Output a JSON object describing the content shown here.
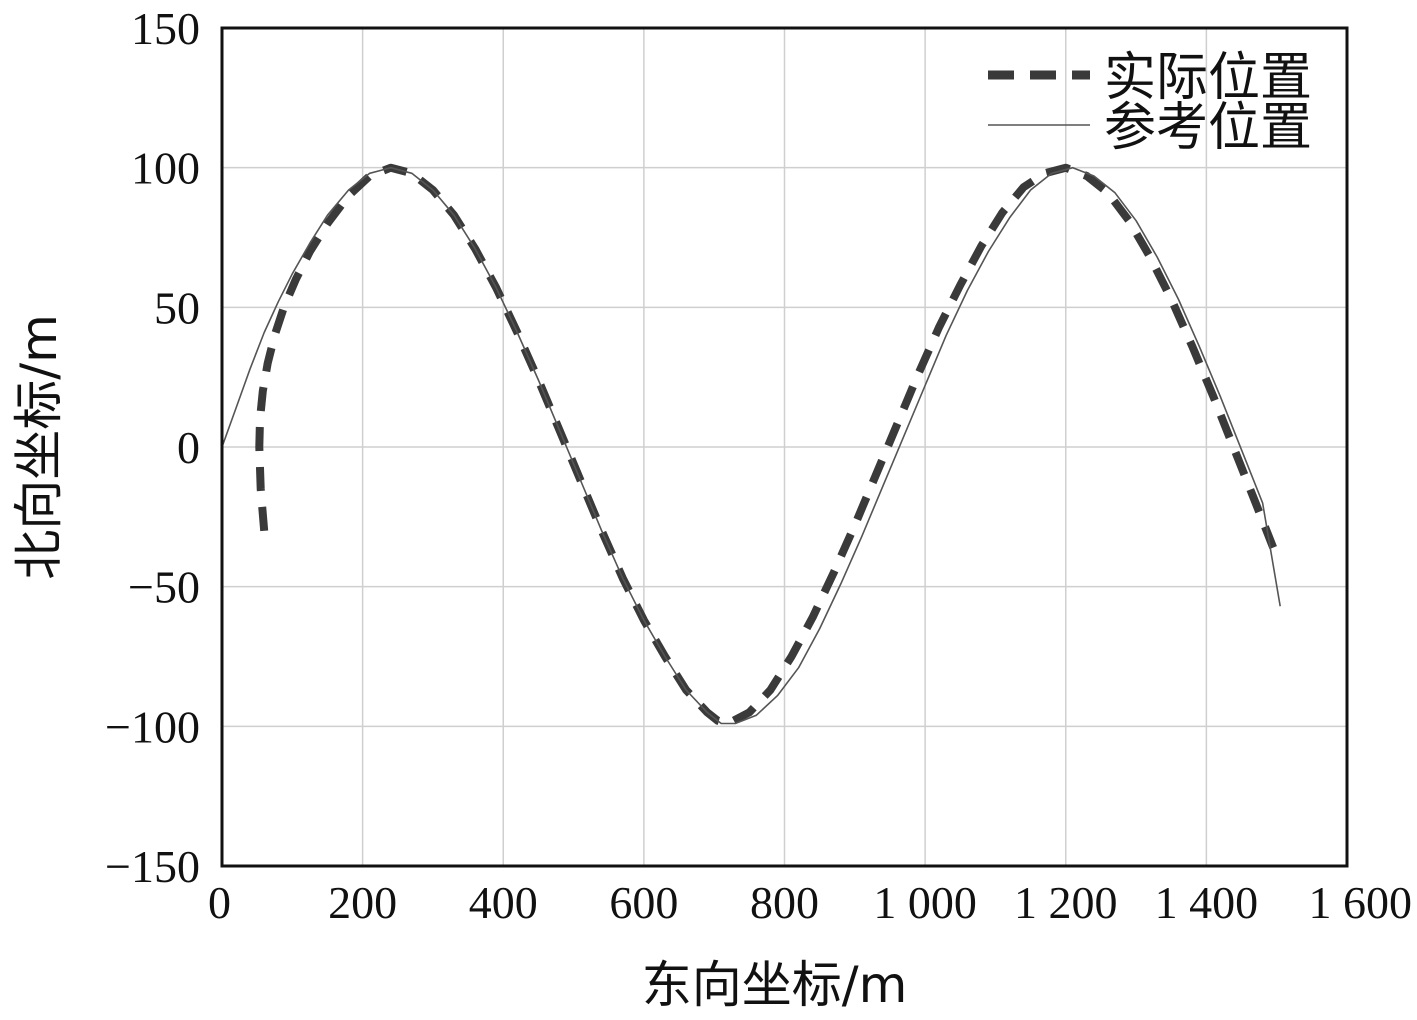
{
  "chart_data": {
    "type": "line",
    "title": "",
    "xlabel": "东向坐标/m",
    "ylabel": "北向坐标/m",
    "xlim": [
      0,
      1600
    ],
    "ylim": [
      -150,
      150
    ],
    "grid": true,
    "legend_position": "top-right",
    "x_ticks": [
      0,
      200,
      400,
      600,
      800,
      1000,
      1200,
      1400,
      1600
    ],
    "x_tick_labels": [
      "0",
      "200",
      "400",
      "600",
      "800",
      "1 000",
      "1 200",
      "1 400",
      "1 600"
    ],
    "y_ticks": [
      150,
      100,
      50,
      0,
      -50,
      -100,
      -150
    ],
    "y_tick_labels": [
      "150",
      "100",
      "50",
      "0",
      "−50",
      "−100",
      "−150"
    ],
    "series": [
      {
        "name": "实际位置",
        "style": "dashed",
        "color": "#3a3a3a",
        "x": [
          60,
          55,
          53,
          54,
          58,
          65,
          75,
          88,
          105,
          125,
          150,
          180,
          210,
          240,
          270,
          300,
          330,
          360,
          390,
          420,
          450,
          480,
          510,
          540,
          570,
          600,
          630,
          660,
          690,
          705,
          720,
          750,
          780,
          810,
          840,
          870,
          900,
          930,
          960,
          990,
          1020,
          1050,
          1080,
          1110,
          1140,
          1170,
          1200,
          1230,
          1260,
          1290,
          1320,
          1350,
          1380,
          1410,
          1440,
          1470,
          1495
        ],
        "y": [
          -30,
          -15,
          0,
          10,
          20,
          30,
          40,
          50,
          60,
          70,
          80,
          90,
          97,
          100,
          98,
          92,
          83,
          71,
          57,
          41,
          24,
          6,
          -12,
          -30,
          -47,
          -62,
          -75,
          -87,
          -95,
          -98,
          -99,
          -95,
          -87,
          -75,
          -61,
          -45,
          -28,
          -10,
          8,
          26,
          43,
          58,
          72,
          84,
          93,
          98,
          100,
          97,
          91,
          81,
          68,
          53,
          36,
          18,
          -1,
          -20,
          -36
        ]
      },
      {
        "name": "参考位置",
        "style": "solid",
        "color": "#555555",
        "x": [
          0,
          20,
          40,
          60,
          80,
          100,
          125,
          150,
          180,
          210,
          240,
          270,
          300,
          330,
          360,
          390,
          420,
          450,
          480,
          510,
          540,
          570,
          600,
          630,
          660,
          690,
          710,
          730,
          760,
          790,
          820,
          850,
          880,
          910,
          940,
          970,
          1000,
          1030,
          1060,
          1090,
          1120,
          1150,
          1180,
          1210,
          1240,
          1270,
          1300,
          1330,
          1360,
          1390,
          1420,
          1450,
          1480,
          1505
        ],
        "y": [
          0,
          14,
          28,
          41,
          52,
          62,
          73,
          83,
          92,
          98,
          100,
          98,
          92,
          83,
          71,
          57,
          41,
          24,
          6,
          -12,
          -30,
          -47,
          -62,
          -75,
          -87,
          -95,
          -99,
          -99,
          -96,
          -89,
          -79,
          -65,
          -49,
          -32,
          -14,
          4,
          22,
          40,
          56,
          70,
          82,
          92,
          98,
          100,
          97,
          91,
          81,
          68,
          53,
          36,
          18,
          -1,
          -20,
          -57
        ]
      }
    ]
  }
}
